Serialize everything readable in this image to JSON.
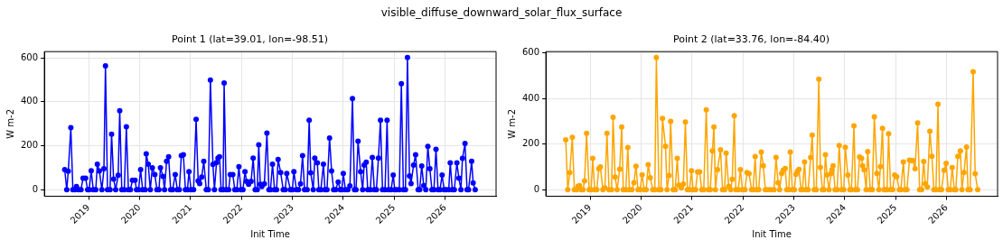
{
  "chart_data": [
    {
      "type": "line",
      "title": "Point 1 (lat=39.01, lon=-98.51)",
      "xlabel": "Init Time",
      "ylabel": "W m-2",
      "annotations": [
        "visible_diffuse_downward_solar_flux_surface"
      ],
      "color": "#0000ff",
      "marker": "circle",
      "line_style": "solid",
      "grid": true,
      "xlim": [
        2018.13,
        2027.0
      ],
      "xticks": [
        2019,
        2020,
        2021,
        2022,
        2023,
        2024,
        2025,
        2026
      ],
      "ylim": [
        -30,
        628
      ],
      "yticks": [
        0,
        200,
        400,
        600
      ],
      "x": [
        2018.53,
        2018.57,
        2018.6,
        2018.65,
        2018.69,
        2018.73,
        2018.76,
        2018.8,
        2018.85,
        2018.89,
        2018.94,
        2018.98,
        2019.01,
        2019.05,
        2019.09,
        2019.14,
        2019.17,
        2019.21,
        2019.26,
        2019.3,
        2019.33,
        2019.37,
        2019.42,
        2019.45,
        2019.49,
        2019.53,
        2019.58,
        2019.61,
        2019.65,
        2019.7,
        2019.74,
        2019.78,
        2019.82,
        2019.86,
        2019.91,
        2019.94,
        2019.98,
        2020.02,
        2020.06,
        2020.11,
        2020.13,
        2020.17,
        2020.21,
        2020.25,
        2020.3,
        2020.34,
        2020.38,
        2020.41,
        2020.46,
        2020.49,
        2020.53,
        2020.57,
        2020.61,
        2020.65,
        2020.7,
        2020.74,
        2020.78,
        2020.82,
        2020.86,
        2020.9,
        2020.94,
        2020.97,
        2021.01,
        2021.06,
        2021.11,
        2021.15,
        2021.18,
        2021.22,
        2021.26,
        2021.31,
        2021.35,
        2021.39,
        2021.44,
        2021.47,
        2021.51,
        2021.54,
        2021.57,
        2021.6,
        2021.64,
        2021.66,
        2021.7,
        2021.75,
        2021.78,
        2021.83,
        2021.87,
        2021.91,
        2021.95,
        2021.99,
        2022.03,
        2022.07,
        2022.1,
        2022.14,
        2022.19,
        2022.23,
        2022.27,
        2022.31,
        2022.34,
        2022.37,
        2022.4,
        2022.45,
        2022.5,
        2022.54,
        2022.57,
        2022.61,
        2022.65,
        2022.69,
        2022.72,
        2022.77,
        2022.82,
        2022.86,
        2022.89,
        2022.96,
        2023.0,
        2023.03,
        2023.08,
        2023.12,
        2023.16,
        2023.2,
        2023.24,
        2023.29,
        2023.33,
        2023.36,
        2023.41,
        2023.44,
        2023.49,
        2023.52,
        2023.56,
        2023.61,
        2023.64,
        2023.68,
        2023.73,
        2023.77,
        2023.81,
        2023.85,
        2023.9,
        2023.94,
        2023.97,
        2024.0,
        2024.04,
        2024.09,
        2024.13,
        2024.18,
        2024.22,
        2024.25,
        2024.29,
        2024.34,
        2024.38,
        2024.41,
        2024.45,
        2024.48,
        2024.53,
        2024.57,
        2024.61,
        2024.65,
        2024.69,
        2024.73,
        2024.77,
        2024.82,
        2024.86,
        2024.89,
        2024.94,
        2024.98,
        2025.01,
        2025.05,
        2025.1,
        2025.14,
        2025.18,
        2025.22,
        2025.26,
        2025.3,
        2025.33,
        2025.38,
        2025.42,
        2025.47,
        2025.5,
        2025.54,
        2025.58,
        2025.62,
        2025.66,
        2025.7,
        2025.74,
        2025.78,
        2025.82,
        2025.86,
        2025.9,
        2025.94,
        2025.98,
        2026.02,
        2026.07,
        2026.1,
        2026.14,
        2026.18,
        2026.23,
        2026.27,
        2026.31,
        2026.34,
        2026.39,
        2026.43,
        2026.46,
        2026.52,
        2026.55,
        2026.59
      ],
      "values": [
        91,
        0,
        84,
        282,
        0,
        0,
        14,
        0,
        0,
        52,
        52,
        0,
        0,
        86,
        0,
        0,
        116,
        85,
        0,
        95,
        563,
        0,
        0,
        252,
        48,
        0,
        65,
        359,
        0,
        0,
        286,
        0,
        0,
        43,
        43,
        0,
        0,
        91,
        0,
        0,
        163,
        116,
        0,
        99,
        69,
        0,
        0,
        99,
        60,
        0,
        129,
        150,
        0,
        0,
        69,
        0,
        0,
        155,
        159,
        0,
        0,
        82,
        0,
        0,
        320,
        40,
        28,
        57,
        129,
        0,
        0,
        499,
        115,
        0,
        123,
        143,
        150,
        0,
        0,
        485,
        0,
        0,
        69,
        69,
        0,
        0,
        104,
        0,
        0,
        82,
        38,
        24,
        38,
        143,
        0,
        0,
        204,
        24,
        14,
        27,
        257,
        0,
        0,
        116,
        0,
        0,
        137,
        78,
        0,
        0,
        74,
        0,
        0,
        82,
        0,
        0,
        27,
        155,
        0,
        0,
        316,
        77,
        0,
        143,
        122,
        0,
        0,
        116,
        0,
        0,
        235,
        85,
        0,
        0,
        35,
        0,
        0,
        74,
        0,
        0,
        17,
        414,
        0,
        0,
        220,
        82,
        0,
        112,
        125,
        0,
        0,
        147,
        0,
        0,
        143,
        316,
        0,
        0,
        316,
        0,
        0,
        67,
        0,
        0,
        0,
        482,
        0,
        0,
        601,
        62,
        28,
        112,
        159,
        0,
        0,
        108,
        18,
        0,
        197,
        95,
        0,
        0,
        184,
        0,
        0,
        67,
        0,
        0,
        0,
        122,
        0,
        0,
        122,
        52,
        0,
        142,
        210,
        0,
        0,
        129,
        31,
        0
      ]
    },
    {
      "type": "line",
      "title": "Point 2 (lat=33.76, lon=-84.40)",
      "xlabel": "Init Time",
      "ylabel": "W m-2",
      "color": "#ffa500",
      "marker": "circle",
      "line_style": "solid",
      "grid": true,
      "xlim": [
        2018.13,
        2027.0
      ],
      "xticks": [
        2019,
        2020,
        2021,
        2022,
        2023,
        2024,
        2025,
        2026
      ],
      "ylim": [
        -29,
        606
      ],
      "yticks": [
        0,
        200,
        400,
        600
      ],
      "x": [
        2018.52,
        2018.56,
        2018.6,
        2018.65,
        2018.69,
        2018.73,
        2018.76,
        2018.79,
        2018.82,
        2018.86,
        2018.89,
        2018.93,
        2018.98,
        2019.02,
        2019.05,
        2019.09,
        2019.13,
        2019.17,
        2019.2,
        2019.25,
        2019.29,
        2019.33,
        2019.37,
        2019.42,
        2019.45,
        2019.49,
        2019.53,
        2019.58,
        2019.62,
        2019.65,
        2019.7,
        2019.74,
        2019.77,
        2019.82,
        2019.86,
        2019.9,
        2019.94,
        2019.98,
        2020.02,
        2020.06,
        2020.1,
        2020.14,
        2020.18,
        2020.23,
        2020.27,
        2020.3,
        2020.35,
        2020.39,
        2020.42,
        2020.48,
        2020.51,
        2020.55,
        2020.58,
        2020.63,
        2020.67,
        2020.71,
        2020.74,
        2020.79,
        2020.83,
        2020.87,
        2020.91,
        2020.95,
        2020.99,
        2021.02,
        2021.07,
        2021.11,
        2021.15,
        2021.19,
        2021.23,
        2021.28,
        2021.32,
        2021.36,
        2021.4,
        2021.43,
        2021.46,
        2021.5,
        2021.56,
        2021.6,
        2021.64,
        2021.67,
        2021.72,
        2021.76,
        2021.79,
        2021.83,
        2021.86,
        2021.91,
        2021.95,
        2021.99,
        2022.04,
        2022.08,
        2022.12,
        2022.17,
        2022.2,
        2022.24,
        2022.27,
        2022.31,
        2022.36,
        2022.4,
        2022.44,
        2022.49,
        2022.55,
        2022.61,
        2022.65,
        2022.69,
        2022.72,
        2022.76,
        2022.79,
        2022.83,
        2022.86,
        2022.9,
        2022.93,
        2022.97,
        2023.01,
        2023.04,
        2023.07,
        2023.1,
        2023.14,
        2023.17,
        2023.21,
        2023.24,
        2023.28,
        2023.33,
        2023.36,
        2023.4,
        2023.44,
        2023.49,
        2023.52,
        2023.56,
        2023.59,
        2023.62,
        2023.65,
        2023.69,
        2023.73,
        2023.75,
        2023.77,
        2023.81,
        2023.85,
        2023.89,
        2023.94,
        2023.98,
        2024.01,
        2024.06,
        2024.1,
        2024.13,
        2024.18,
        2024.21,
        2024.25,
        2024.29,
        2024.33,
        2024.35,
        2024.38,
        2024.42,
        2024.45,
        2024.5,
        2024.54,
        2024.58,
        2024.63,
        2024.67,
        2024.7,
        2024.74,
        2024.77,
        2024.8,
        2024.83,
        2024.86,
        2024.9,
        2024.94,
        2024.98,
        2025.02,
        2025.07,
        2025.1,
        2025.15,
        2025.18,
        2025.22,
        2025.27,
        2025.31,
        2025.34,
        2025.38,
        2025.43,
        2025.47,
        2025.51,
        2025.55,
        2025.58,
        2025.62,
        2025.67,
        2025.71,
        2025.75,
        2025.79,
        2025.83,
        2025.86,
        2025.9,
        2025.95,
        2025.99,
        2026.03,
        2026.07,
        2026.11,
        2026.15,
        2026.18,
        2026.22,
        2026.27,
        2026.3,
        2026.34,
        2026.39,
        2026.42,
        2026.46,
        2026.52,
        2026.56,
        2026.61
      ],
      "values": [
        219,
        0,
        75,
        230,
        0,
        0,
        15,
        18,
        0,
        0,
        38,
        247,
        0,
        0,
        137,
        0,
        0,
        92,
        100,
        0,
        8,
        247,
        0,
        0,
        318,
        55,
        0,
        90,
        275,
        0,
        0,
        185,
        0,
        0,
        30,
        103,
        0,
        0,
        65,
        0,
        0,
        110,
        52,
        0,
        0,
        580,
        0,
        0,
        313,
        190,
        0,
        62,
        300,
        0,
        0,
        137,
        20,
        8,
        25,
        297,
        0,
        0,
        83,
        0,
        0,
        78,
        78,
        0,
        0,
        350,
        0,
        0,
        170,
        275,
        0,
        88,
        175,
        0,
        0,
        160,
        15,
        0,
        45,
        325,
        0,
        0,
        88,
        0,
        0,
        75,
        70,
        0,
        0,
        145,
        0,
        0,
        165,
        105,
        0,
        0,
        0,
        0,
        141,
        30,
        0,
        71,
        85,
        93,
        0,
        0,
        165,
        0,
        0,
        67,
        81,
        89,
        0,
        0,
        122,
        0,
        0,
        141,
        239,
        0,
        0,
        485,
        98,
        0,
        0,
        153,
        64,
        0,
        71,
        87,
        105,
        0,
        0,
        194,
        0,
        0,
        186,
        64,
        0,
        0,
        280,
        0,
        0,
        143,
        137,
        105,
        87,
        0,
        167,
        0,
        0,
        320,
        71,
        0,
        101,
        269,
        0,
        0,
        0,
        245,
        0,
        0,
        64,
        56,
        0,
        0,
        122,
        0,
        0,
        130,
        128,
        128,
        92,
        293,
        0,
        0,
        124,
        26,
        12,
        256,
        146,
        0,
        0,
        375,
        0,
        0,
        85,
        116,
        0,
        0,
        97,
        0,
        0,
        146,
        170,
        0,
        75,
        187,
        0,
        0,
        518,
        70,
        0
      ]
    }
  ]
}
